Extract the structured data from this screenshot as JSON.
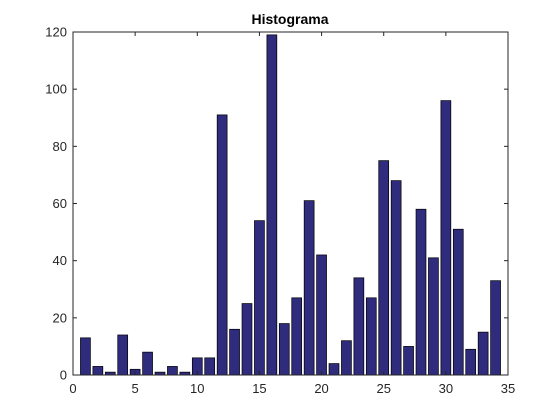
{
  "chart_data": {
    "type": "bar",
    "title": "Histograma",
    "xlabel": "",
    "ylabel": "",
    "xlim": [
      0,
      35
    ],
    "ylim": [
      0,
      120
    ],
    "x_ticks": [
      0,
      5,
      10,
      15,
      20,
      25,
      30,
      35
    ],
    "y_ticks": [
      0,
      20,
      40,
      60,
      80,
      100,
      120
    ],
    "grid": false,
    "categories": [
      1,
      2,
      3,
      4,
      5,
      6,
      7,
      8,
      9,
      10,
      11,
      12,
      13,
      14,
      15,
      16,
      17,
      18,
      19,
      20,
      21,
      22,
      23,
      24,
      25,
      26,
      27,
      28,
      29,
      30,
      31,
      32,
      33,
      34
    ],
    "values": [
      13,
      3,
      1,
      14,
      2,
      8,
      1,
      3,
      1,
      6,
      6,
      91,
      16,
      25,
      54,
      119,
      18,
      27,
      61,
      42,
      4,
      12,
      34,
      27,
      75,
      68,
      10,
      58,
      41,
      96,
      51,
      9,
      15,
      33
    ],
    "colors": {
      "bar_fill": "#2f2b7d",
      "bar_edge": "#000000",
      "axis": "#262626"
    }
  }
}
